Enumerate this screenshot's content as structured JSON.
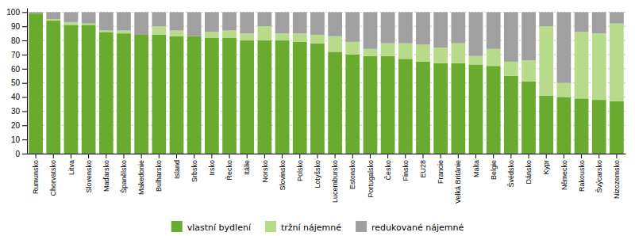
{
  "chart_data": {
    "type": "bar",
    "stacked": true,
    "grid": true,
    "legend": "bottom",
    "categories": [
      "Rumunsko",
      "Chorvatsko",
      "Litva",
      "Slovensko",
      "Maďarsko",
      "Španělsko",
      "Makedonie",
      "Bulharsko",
      "Island",
      "Srbsko",
      "Irsko",
      "Řecko",
      "Itálie",
      "Norsko",
      "Slovinsko",
      "Polsko",
      "Lotyšsko",
      "Lucembursko",
      "Estonsko",
      "Portugalsko",
      "Česko",
      "Finsko",
      "EU28",
      "Francie",
      "Velká Británie",
      "Malta",
      "Belgie",
      "Švédsko",
      "Dánsko",
      "Kypr",
      "Německo",
      "Rakousko",
      "Švýcarsko",
      "Nizozemsko"
    ],
    "series": [
      {
        "name": "vlastní bydlení",
        "color": "#6aaa2e",
        "values": [
          99,
          94,
          91,
          91,
          86,
          85,
          84,
          84,
          83,
          83,
          82,
          82,
          80,
          80,
          80,
          79,
          78,
          72,
          70,
          69,
          69,
          67,
          65,
          64,
          64,
          63,
          62,
          55,
          51,
          41,
          40,
          39,
          38,
          37
        ]
      },
      {
        "name": "tržní nájemné",
        "color": "#b8db8b",
        "values": [
          0,
          1,
          2,
          1,
          1,
          2,
          0,
          6,
          4,
          0,
          4,
          5,
          5,
          10,
          5,
          6,
          6,
          11,
          9,
          5,
          9,
          11,
          12,
          11,
          14,
          6,
          12,
          10,
          15,
          49,
          10,
          47,
          47,
          55
        ]
      },
      {
        "name": "redukované nájemné",
        "color": "#a0a0a0",
        "values": [
          1,
          5,
          7,
          8,
          13,
          13,
          16,
          10,
          13,
          17,
          14,
          13,
          15,
          10,
          15,
          15,
          16,
          17,
          21,
          26,
          22,
          22,
          23,
          25,
          22,
          31,
          26,
          35,
          34,
          10,
          50,
          14,
          15,
          8
        ]
      }
    ],
    "ylim": [
      0,
      103
    ],
    "yticks": [
      0,
      10,
      20,
      30,
      40,
      50,
      60,
      70,
      80,
      90,
      100
    ]
  }
}
